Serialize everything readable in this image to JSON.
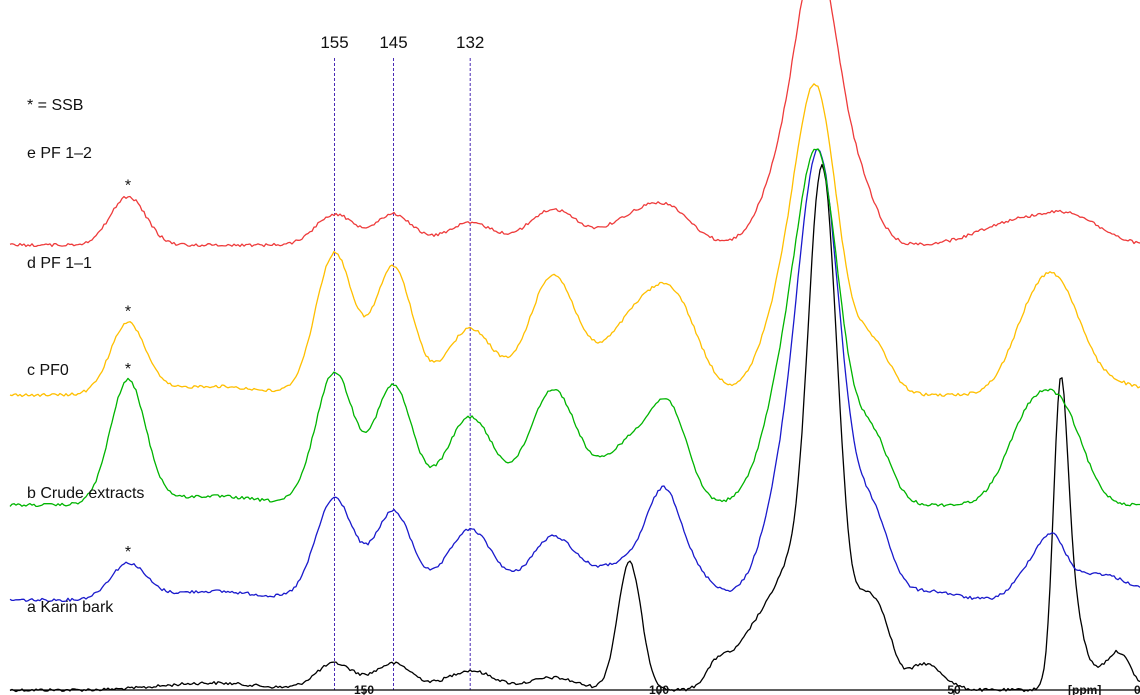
{
  "chart_data": {
    "type": "line",
    "title": "",
    "xlabel": "[ppm]",
    "ylabel": "",
    "x_reversed": true,
    "xlim": [
      0,
      210
    ],
    "x_ticks": [
      {
        "value": 150,
        "label": "150"
      },
      {
        "value": 100,
        "label": "100"
      },
      {
        "value": 50,
        "label": "50"
      },
      {
        "value": 0,
        "label": "0"
      }
    ],
    "note": "* = SSB",
    "reference_lines": [
      {
        "value": 155,
        "label": "155"
      },
      {
        "value": 145,
        "label": "145"
      },
      {
        "value": 132,
        "label": "132"
      }
    ],
    "series": [
      {
        "name": "a Karin bark",
        "color": "#000000",
        "baseline": 690,
        "peaks": [
          [
            176,
            8,
            8
          ],
          [
            155,
            30,
            3.2
          ],
          [
            145,
            30,
            3.2
          ],
          [
            132,
            22,
            4
          ],
          [
            118,
            14,
            4
          ],
          [
            105,
            145,
            2
          ],
          [
            90,
            30,
            2
          ],
          [
            84,
            60,
            3
          ],
          [
            78,
            120,
            3
          ],
          [
            73,
            340,
            2.2
          ],
          [
            71,
            290,
            2.5
          ],
          [
            65,
            80,
            1.8
          ],
          [
            62,
            65,
            1.8
          ],
          [
            55,
            30,
            3
          ],
          [
            32,
            310,
            1.2
          ],
          [
            30,
            80,
            1.5
          ],
          [
            28,
            25,
            3
          ],
          [
            22,
            40,
            2
          ]
        ],
        "ssb_positions": []
      },
      {
        "name": "b Crude extracts",
        "color": "#1a1acc",
        "baseline": 600,
        "peaks": [
          [
            190,
            40,
            3
          ],
          [
            176,
            10,
            8
          ],
          [
            155,
            115,
            3.2
          ],
          [
            145,
            100,
            3.2
          ],
          [
            132,
            80,
            4
          ],
          [
            118,
            70,
            4
          ],
          [
            106,
            40,
            5
          ],
          [
            99,
            110,
            3
          ],
          [
            93,
            20,
            3
          ],
          [
            78,
            140,
            4
          ],
          [
            74,
            260,
            3
          ],
          [
            71,
            250,
            3
          ],
          [
            64,
            100,
            3
          ],
          [
            54,
            10,
            4
          ],
          [
            36,
            40,
            3
          ],
          [
            33,
            35,
            2
          ],
          [
            26,
            30,
            6
          ]
        ],
        "ssb_positions": [
          190
        ]
      },
      {
        "name": "c PF0",
        "color": "#00b400",
        "baseline": 505,
        "peaks": [
          [
            190,
            140,
            3
          ],
          [
            176,
            10,
            8
          ],
          [
            155,
            150,
            3.2
          ],
          [
            145,
            135,
            3.2
          ],
          [
            132,
            100,
            4
          ],
          [
            118,
            130,
            4
          ],
          [
            104,
            75,
            5
          ],
          [
            98,
            80,
            3
          ],
          [
            78,
            150,
            4
          ],
          [
            74,
            200,
            3
          ],
          [
            71,
            180,
            3
          ],
          [
            64,
            80,
            3
          ],
          [
            37,
            100,
            4
          ],
          [
            31,
            80,
            3.5
          ]
        ],
        "ssb_positions": [
          190
        ]
      },
      {
        "name": "d PF 1–1",
        "color": "#ffbf00",
        "baseline": 395,
        "peaks": [
          [
            190,
            80,
            3
          ],
          [
            176,
            10,
            8
          ],
          [
            155,
            160,
            3.2
          ],
          [
            145,
            145,
            3.2
          ],
          [
            132,
            75,
            4
          ],
          [
            118,
            135,
            4
          ],
          [
            104,
            85,
            5
          ],
          [
            97,
            85,
            4
          ],
          [
            78,
            120,
            4
          ],
          [
            74,
            200,
            3
          ],
          [
            71,
            130,
            3
          ],
          [
            64,
            60,
            3
          ],
          [
            36,
            100,
            4
          ],
          [
            31,
            70,
            3.5
          ],
          [
            24,
            15,
            5
          ]
        ],
        "ssb_positions": [
          190
        ]
      },
      {
        "name": "e PF 1–2",
        "color": "#ee3b3b",
        "baseline": 245,
        "peaks": [
          [
            190,
            55,
            3
          ],
          [
            155,
            35,
            3.2
          ],
          [
            145,
            35,
            3.2
          ],
          [
            132,
            25,
            4
          ],
          [
            118,
            40,
            4
          ],
          [
            104,
            30,
            5
          ],
          [
            98,
            30,
            4
          ],
          [
            78,
            100,
            4
          ],
          [
            74,
            185,
            3
          ],
          [
            71,
            130,
            3
          ],
          [
            66,
            60,
            3
          ],
          [
            40,
            25,
            6
          ],
          [
            30,
            30,
            5
          ]
        ],
        "ssb_positions": [
          190
        ]
      }
    ],
    "peaks_units": "each peak = [ppm, relative height, width in ppm]"
  }
}
